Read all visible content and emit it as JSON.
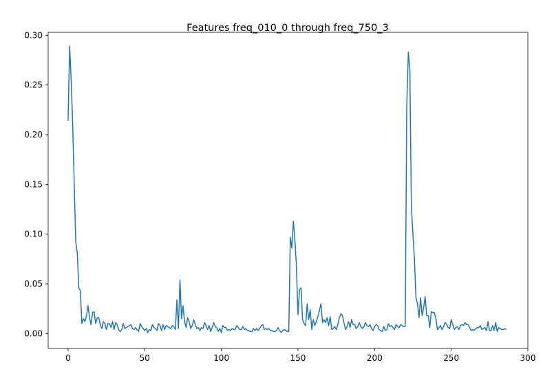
{
  "chart_data": {
    "type": "line",
    "title": "Features freq_010_0 through freq_750_3",
    "xlabel": "",
    "ylabel": "",
    "xlim": [
      -13,
      300
    ],
    "ylim": [
      -0.015,
      0.303
    ],
    "xticks": [
      0,
      50,
      100,
      150,
      200,
      250,
      300
    ],
    "xtick_labels": [
      "0",
      "50",
      "100",
      "150",
      "200",
      "250",
      "300"
    ],
    "yticks": [
      0.0,
      0.05,
      0.1,
      0.15,
      0.2,
      0.25,
      0.3
    ],
    "ytick_labels": [
      "0.00",
      "0.05",
      "0.10",
      "0.15",
      "0.20",
      "0.25",
      "0.30"
    ],
    "grid": false,
    "line_color": "#1f77b4",
    "series": [
      {
        "x_start": 0,
        "values": [
          0.214,
          0.289,
          0.255,
          0.21,
          0.15,
          0.092,
          0.081,
          0.046,
          0.043,
          0.01,
          0.015,
          0.012,
          0.018,
          0.028,
          0.016,
          0.009,
          0.021,
          0.022,
          0.01,
          0.016,
          0.016,
          0.009,
          0.005,
          0.012,
          0.01,
          0.004,
          0.01,
          0.01,
          0.006,
          0.012,
          0.004,
          0.011,
          0.009,
          0.004,
          0.002,
          0.004,
          0.01,
          0.005,
          0.006,
          0.007,
          0.008,
          0.009,
          0.005,
          0.004,
          0.006,
          0.004,
          0.002,
          0.01,
          0.007,
          0.005,
          0.003,
          0.005,
          0.001,
          0.004,
          0.003,
          0.009,
          0.006,
          0.005,
          0.003,
          0.01,
          0.008,
          0.003,
          0.009,
          0.004,
          0.008,
          0.007,
          0.006,
          0.005,
          0.008,
          0.007,
          0.004,
          0.034,
          0.005,
          0.054,
          0.015,
          0.028,
          0.012,
          0.006,
          0.016,
          0.012,
          0.005,
          0.008,
          0.014,
          0.009,
          0.005,
          0.006,
          0.003,
          0.006,
          0.005,
          0.011,
          0.008,
          0.004,
          0.008,
          0.002,
          0.006,
          0.011,
          0.007,
          0.006,
          0.002,
          0.005,
          0.001,
          0.008,
          0.006,
          0.006,
          0.003,
          0.004,
          0.003,
          0.005,
          0.004,
          0.004,
          0.008,
          0.006,
          0.004,
          0.004,
          0.007,
          0.004,
          0.005,
          0.003,
          0.003,
          0.002,
          0.002,
          0.005,
          0.003,
          0.005,
          0.003,
          0.005,
          0.008,
          0.009,
          0.004,
          0.005,
          0.004,
          0.005,
          0.003,
          0.003,
          0.002,
          0.002,
          0.003,
          0.006,
          0.003,
          0.001,
          0.003,
          0.004,
          0.003,
          0.002,
          0.002,
          0.097,
          0.086,
          0.113,
          0.094,
          0.067,
          0.019,
          0.044,
          0.046,
          0.014,
          0.01,
          0.008,
          0.03,
          0.014,
          0.024,
          0.004,
          0.014,
          0.008,
          0.012,
          0.017,
          0.023,
          0.03,
          0.011,
          0.014,
          0.011,
          0.016,
          0.008,
          0.017,
          0.004,
          0.005,
          0.007,
          0.004,
          0.009,
          0.016,
          0.02,
          0.018,
          0.011,
          0.004,
          0.007,
          0.012,
          0.006,
          0.014,
          0.009,
          0.009,
          0.005,
          0.007,
          0.011,
          0.007,
          0.005,
          0.007,
          0.011,
          0.008,
          0.007,
          0.009,
          0.005,
          0.003,
          0.007,
          0.009,
          0.008,
          0.004,
          0.003,
          0.002,
          0.007,
          0.003,
          0.004,
          0.01,
          0.007,
          0.008,
          0.006,
          0.004,
          0.009,
          0.007,
          0.006,
          0.009,
          0.008,
          0.007,
          0.007,
          0.23,
          0.283,
          0.266,
          0.127,
          0.1,
          0.075,
          0.036,
          0.03,
          0.016,
          0.036,
          0.018,
          0.026,
          0.037,
          0.018,
          0.018,
          0.006,
          0.022,
          0.021,
          0.021,
          0.015,
          0.004,
          0.006,
          0.008,
          0.004,
          0.007,
          0.011,
          0.009,
          0.006,
          0.005,
          0.014,
          0.009,
          0.004,
          0.006,
          0.007,
          0.004,
          0.008,
          0.009,
          0.008,
          0.011,
          0.009,
          0.009,
          0.006,
          0.003,
          0.004,
          0.003,
          0.005,
          0.006,
          0.006,
          0.008,
          0.004,
          0.005,
          0.006,
          0.003,
          0.012,
          0.003,
          0.003,
          0.008,
          0.003,
          0.011,
          0.002,
          0.006,
          0.005,
          0.004,
          0.004,
          0.005,
          0.004
        ]
      }
    ]
  }
}
